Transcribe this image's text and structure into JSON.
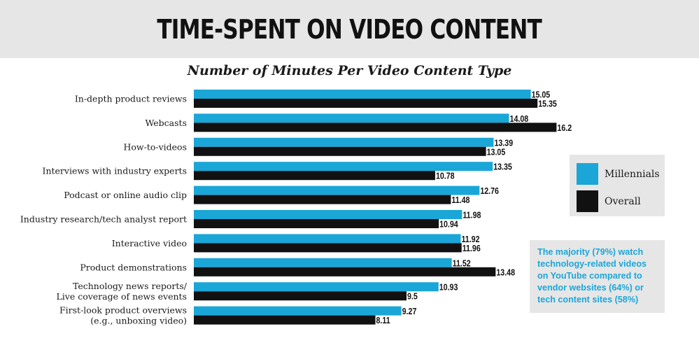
{
  "header": {
    "title": "TIME-SPENT ON VIDEO CONTENT"
  },
  "chart_data": {
    "type": "bar",
    "orientation": "horizontal",
    "title": "Number of Minutes Per Video Content Type",
    "categories": [
      [
        "In-depth product reviews"
      ],
      [
        "Webcasts"
      ],
      [
        "How-to-videos"
      ],
      [
        "Interviews with industry experts"
      ],
      [
        "Podcast or online audio clip"
      ],
      [
        "Industry research/tech analyst report"
      ],
      [
        "Interactive video"
      ],
      [
        "Product demonstrations"
      ],
      [
        "Technology news reports/",
        "Live coverage of news events"
      ],
      [
        "First-look product overviews",
        "(e.g., unboxing video)"
      ]
    ],
    "series": [
      {
        "name": "Millennials",
        "color": "#1ba6d8",
        "values": [
          15.05,
          14.08,
          13.39,
          13.35,
          12.76,
          11.98,
          11.92,
          11.52,
          10.93,
          9.27
        ]
      },
      {
        "name": "Overall",
        "color": "#111111",
        "values": [
          15.35,
          16.2,
          13.05,
          10.78,
          11.48,
          10.94,
          11.96,
          13.48,
          9.5,
          8.11
        ]
      }
    ],
    "xlim": [
      0,
      16.2
    ],
    "grid": false,
    "legend_position": "right"
  },
  "legend": {
    "items": [
      {
        "label": "Millennials",
        "color": "#1ba6d8"
      },
      {
        "label": "Overall",
        "color": "#111111"
      }
    ]
  },
  "note": {
    "lines": [
      "The majority (79%) watch",
      "technology-related videos",
      "on YouTube compared to",
      "vendor websites (64%) or",
      "tech content sites (58%)"
    ],
    "color": "#1ba6d8"
  }
}
